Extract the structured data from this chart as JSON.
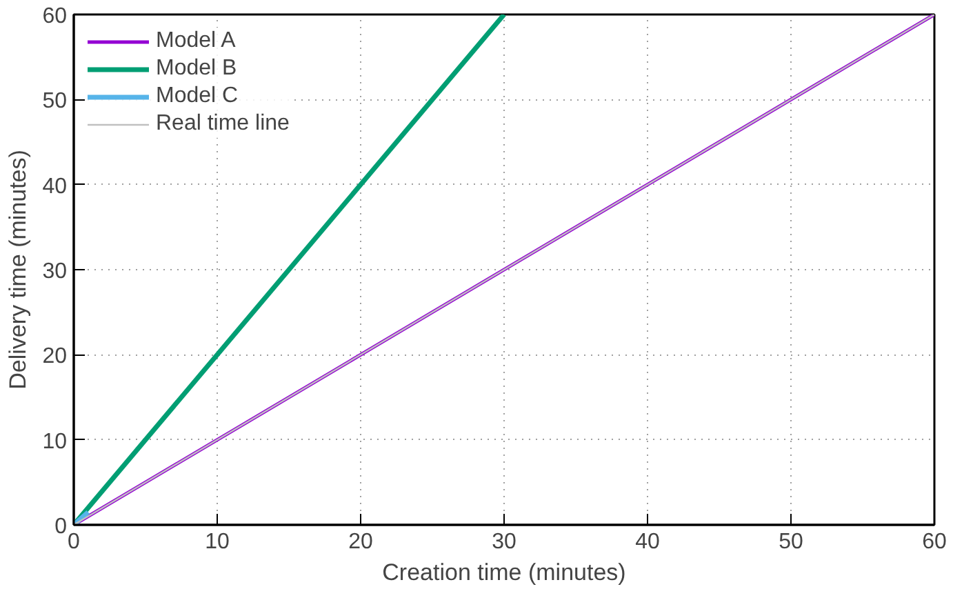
{
  "chart_data": {
    "type": "line",
    "xlabel": "Creation time (minutes)",
    "ylabel": "Delivery time (minutes)",
    "xlim": [
      0,
      60
    ],
    "ylim": [
      0,
      60
    ],
    "xticks": [
      0,
      10,
      20,
      30,
      40,
      50,
      60
    ],
    "yticks": [
      0,
      10,
      20,
      30,
      40,
      50,
      60
    ],
    "grid": true,
    "legend": "top left",
    "line_style": "solid",
    "marker": "none",
    "series": [
      {
        "name": "Model A",
        "color": "#9400d3",
        "x": [
          0,
          60
        ],
        "values": [
          0,
          60
        ]
      },
      {
        "name": "Model B",
        "color": "#009e73",
        "x": [
          0,
          30
        ],
        "values": [
          0,
          60
        ]
      },
      {
        "name": "Model C",
        "color": "#56b4e9",
        "x": [
          0,
          1
        ],
        "values": [
          0,
          1.5
        ]
      },
      {
        "name": "Real time line",
        "color": "#c0c0c0",
        "x": [
          0,
          60
        ],
        "values": [
          0,
          60
        ]
      }
    ]
  }
}
